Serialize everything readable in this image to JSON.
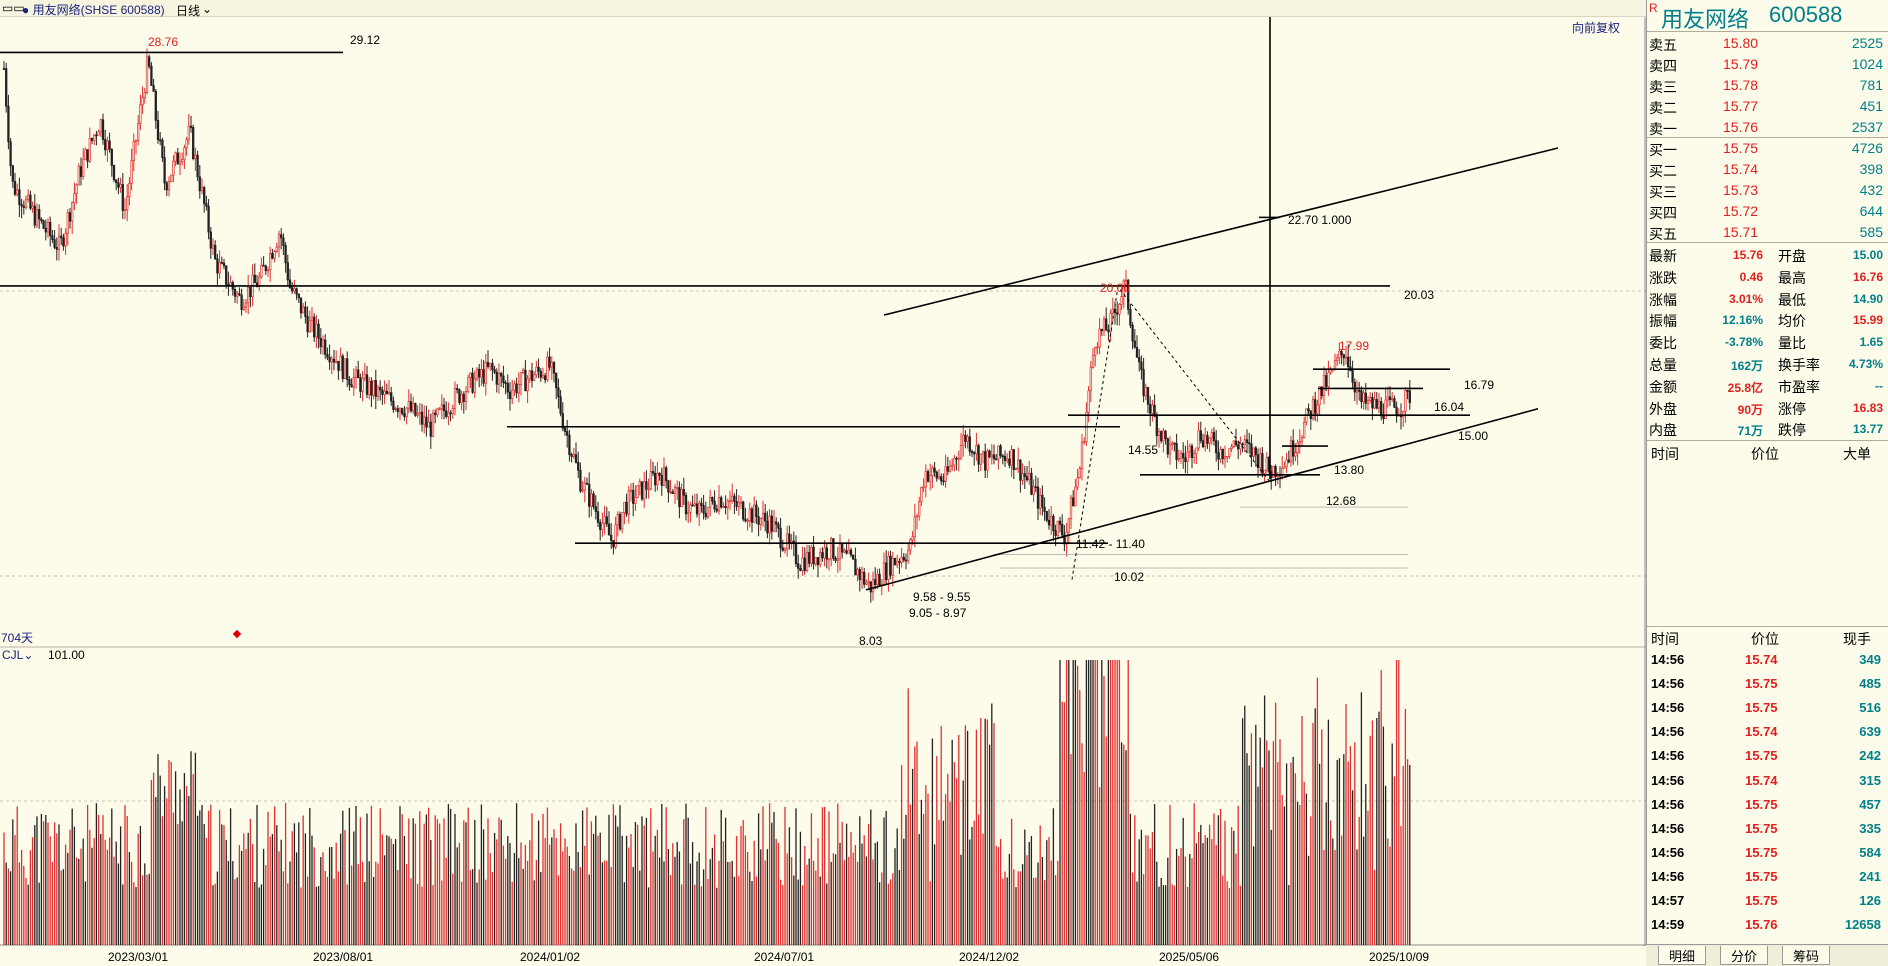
{
  "header": {
    "icon_glyph": "▭▭",
    "title": "● 用友网络(SHSE 600588)",
    "period": "日线",
    "restore_label": "向前复权"
  },
  "chart_data": {
    "type": "candlestick",
    "x_ticks": [
      "2023/03/01",
      "2023/08/01",
      "2024/01/02",
      "2024/07/01",
      "2024/12/02",
      "2025/05/06",
      "2025/10/09"
    ],
    "marked_prices": {
      "high_label": "28.76",
      "low_label": "8.03",
      "peak2": "20.00",
      "peak3": "17.99"
    },
    "levels": [
      {
        "label": "29.12"
      },
      {
        "label": "20.03"
      },
      {
        "label": "16.79"
      },
      {
        "label": "16.04"
      },
      {
        "label": "15.00"
      },
      {
        "label": "14.55"
      },
      {
        "label": "13.80"
      },
      {
        "label": "12.68"
      },
      {
        "label": "10.02"
      }
    ],
    "fib_label": "22.70  1.000",
    "gap_labels": [
      "11.42 - 11.40",
      "9.58 - 9.55",
      "9.05 - 8.97"
    ],
    "days_label": "704天",
    "volume_indicator": "CJL",
    "volume_value": "101.00"
  },
  "quote": {
    "name": "用友网络",
    "code": "600588",
    "r_badge": "R",
    "asks": [
      {
        "label": "卖五",
        "price": "15.80",
        "vol": "2525"
      },
      {
        "label": "卖四",
        "price": "15.79",
        "vol": "1024"
      },
      {
        "label": "卖三",
        "price": "15.78",
        "vol": "781"
      },
      {
        "label": "卖二",
        "price": "15.77",
        "vol": "451"
      },
      {
        "label": "卖一",
        "price": "15.76",
        "vol": "2537"
      }
    ],
    "bids": [
      {
        "label": "买一",
        "price": "15.75",
        "vol": "4726"
      },
      {
        "label": "买二",
        "price": "15.74",
        "vol": "398"
      },
      {
        "label": "买三",
        "price": "15.73",
        "vol": "432"
      },
      {
        "label": "买四",
        "price": "15.72",
        "vol": "644"
      },
      {
        "label": "买五",
        "price": "15.71",
        "vol": "585"
      }
    ],
    "stats": [
      {
        "l1": "最新",
        "v1": "15.76",
        "c1": "red",
        "l2": "开盘",
        "v2": "15.00",
        "c2": "teal"
      },
      {
        "l1": "涨跌",
        "v1": "0.46",
        "c1": "red",
        "l2": "最高",
        "v2": "16.76",
        "c2": "red"
      },
      {
        "l1": "涨幅",
        "v1": "3.01%",
        "c1": "red",
        "l2": "最低",
        "v2": "14.90",
        "c2": "teal"
      },
      {
        "l1": "振幅",
        "v1": "12.16%",
        "c1": "teal",
        "l2": "均价",
        "v2": "15.99",
        "c2": "red"
      },
      {
        "l1": "委比",
        "v1": "-3.78%",
        "c1": "teal",
        "l2": "量比",
        "v2": "1.65",
        "c2": "teal"
      },
      {
        "l1": "总量",
        "v1": "162万",
        "c1": "teal",
        "l2": "换手率",
        "v2": "4.73%",
        "c2": "teal"
      },
      {
        "l1": "金额",
        "v1": "25.8亿",
        "c1": "red",
        "l2": "市盈率",
        "v2": "--",
        "c2": "teal"
      },
      {
        "l1": "外盘",
        "v1": "90万",
        "c1": "red",
        "l2": "涨停",
        "v2": "16.83",
        "c2": "red"
      },
      {
        "l1": "内盘",
        "v1": "71万",
        "c1": "teal",
        "l2": "跌停",
        "v2": "13.77",
        "c2": "teal"
      }
    ],
    "big_header": {
      "time": "时间",
      "price": "价位",
      "big": "大单"
    },
    "trades_header": {
      "time": "时间",
      "price": "价位",
      "vol": "现手"
    },
    "trades": [
      {
        "t": "14:56",
        "p": "15.74",
        "v": "349"
      },
      {
        "t": "14:56",
        "p": "15.75",
        "v": "485"
      },
      {
        "t": "14:56",
        "p": "15.75",
        "v": "516"
      },
      {
        "t": "14:56",
        "p": "15.74",
        "v": "639"
      },
      {
        "t": "14:56",
        "p": "15.75",
        "v": "242"
      },
      {
        "t": "14:56",
        "p": "15.74",
        "v": "315"
      },
      {
        "t": "14:56",
        "p": "15.75",
        "v": "457"
      },
      {
        "t": "14:56",
        "p": "15.75",
        "v": "335"
      },
      {
        "t": "14:56",
        "p": "15.75",
        "v": "584"
      },
      {
        "t": "14:56",
        "p": "15.75",
        "v": "241"
      },
      {
        "t": "14:57",
        "p": "15.75",
        "v": "126"
      },
      {
        "t": "14:59",
        "p": "15.76",
        "v": "12658"
      }
    ],
    "tabs": [
      "明细",
      "分价",
      "筹码"
    ]
  }
}
